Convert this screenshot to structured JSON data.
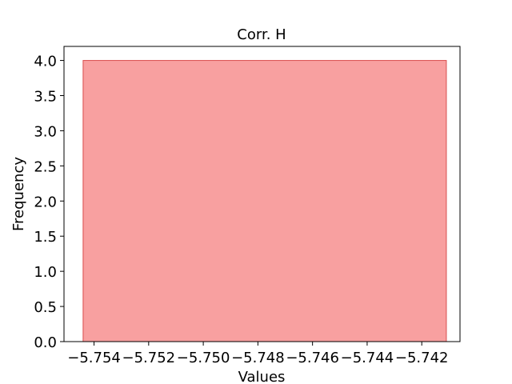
{
  "chart_data": {
    "type": "bar",
    "title": "Corr. H",
    "xlabel": "Values",
    "ylabel": "Frequency",
    "bins": [
      {
        "x_start": -5.7544,
        "x_end": -5.7411,
        "value": 4
      }
    ],
    "xlim": [
      -5.7551,
      -5.7406
    ],
    "ylim": [
      0,
      4.2
    ],
    "xticks": [
      {
        "value": -5.754,
        "label": "−5.754"
      },
      {
        "value": -5.752,
        "label": "−5.752"
      },
      {
        "value": -5.75,
        "label": "−5.750"
      },
      {
        "value": -5.748,
        "label": "−5.748"
      },
      {
        "value": -5.746,
        "label": "−5.746"
      },
      {
        "value": -5.744,
        "label": "−5.744"
      },
      {
        "value": -5.742,
        "label": "−5.742"
      }
    ],
    "yticks": [
      {
        "value": 0.0,
        "label": "0.0"
      },
      {
        "value": 0.5,
        "label": "0.5"
      },
      {
        "value": 1.0,
        "label": "1.0"
      },
      {
        "value": 1.5,
        "label": "1.5"
      },
      {
        "value": 2.0,
        "label": "2.0"
      },
      {
        "value": 2.5,
        "label": "2.5"
      },
      {
        "value": 3.0,
        "label": "3.0"
      },
      {
        "value": 3.5,
        "label": "3.5"
      },
      {
        "value": 4.0,
        "label": "4.0"
      }
    ],
    "grid": false,
    "colors": {
      "bar_fill": "#f8a0a0",
      "bar_edge": "#d94c4c",
      "axis": "#000000"
    }
  }
}
